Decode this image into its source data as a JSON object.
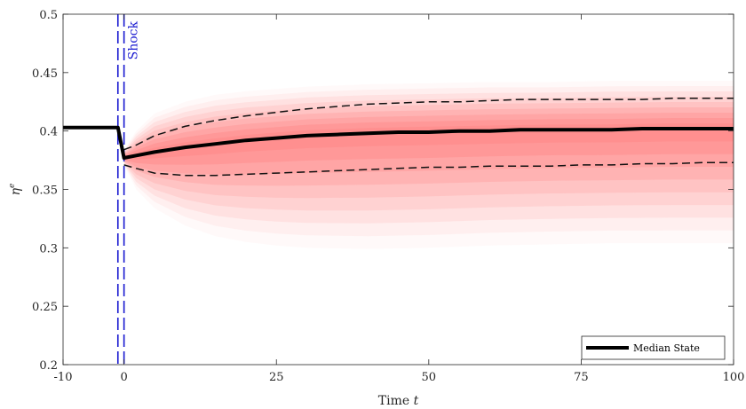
{
  "chart_data": {
    "type": "line",
    "xlabel": "Time t",
    "xlabel_parts": {
      "text": "Time ",
      "var": "t"
    },
    "ylabel": "η^e",
    "ylabel_parts": {
      "base": "η",
      "sup": "e"
    },
    "xlim": [
      -10,
      100
    ],
    "ylim": [
      0.2,
      0.5
    ],
    "xticks": [
      -10,
      0,
      25,
      50,
      75,
      100
    ],
    "xtick_labels": [
      "-10",
      "0",
      "25",
      "50",
      "75",
      "100"
    ],
    "yticks": [
      0.2,
      0.25,
      0.3,
      0.35,
      0.4,
      0.45,
      0.5
    ],
    "ytick_labels": [
      "0.2",
      "0.25",
      "0.3",
      "0.35",
      "0.4",
      "0.45",
      "0.5"
    ],
    "grid": false,
    "legend": {
      "position": "bottom-right",
      "entries": [
        "Median State"
      ]
    },
    "annotation": {
      "text": "Shock",
      "x": 0,
      "color": "#1a1ad0"
    },
    "shock_lines": [
      -1,
      0
    ],
    "median": {
      "name": "Median State",
      "x": [
        -10,
        -1,
        0,
        2,
        5,
        10,
        15,
        20,
        25,
        30,
        35,
        40,
        45,
        50,
        55,
        60,
        65,
        70,
        75,
        80,
        85,
        90,
        95,
        100
      ],
      "y": [
        0.403,
        0.403,
        0.377,
        0.379,
        0.382,
        0.386,
        0.389,
        0.392,
        0.394,
        0.396,
        0.397,
        0.398,
        0.399,
        0.399,
        0.4,
        0.4,
        0.401,
        0.401,
        0.401,
        0.401,
        0.402,
        0.402,
        0.402,
        0.402
      ]
    },
    "dashed_bands": {
      "x": [
        0,
        2,
        5,
        10,
        15,
        20,
        25,
        30,
        35,
        40,
        45,
        50,
        55,
        60,
        65,
        70,
        75,
        80,
        85,
        90,
        95,
        100
      ],
      "upper": [
        0.384,
        0.388,
        0.396,
        0.404,
        0.409,
        0.413,
        0.416,
        0.419,
        0.421,
        0.423,
        0.424,
        0.425,
        0.425,
        0.426,
        0.427,
        0.427,
        0.427,
        0.427,
        0.427,
        0.428,
        0.428,
        0.428
      ],
      "lower": [
        0.371,
        0.368,
        0.364,
        0.362,
        0.362,
        0.363,
        0.364,
        0.365,
        0.366,
        0.367,
        0.368,
        0.369,
        0.369,
        0.37,
        0.37,
        0.37,
        0.371,
        0.371,
        0.372,
        0.372,
        0.373,
        0.373
      ]
    },
    "fan_bands": {
      "x": [
        0,
        2,
        5,
        10,
        15,
        20,
        25,
        30,
        40,
        50,
        60,
        70,
        80,
        90,
        100
      ],
      "upper_outer": [
        0.384,
        0.4,
        0.415,
        0.425,
        0.431,
        0.434,
        0.436,
        0.438,
        0.44,
        0.441,
        0.442,
        0.442,
        0.443,
        0.443,
        0.443
      ],
      "lower_outer": [
        0.371,
        0.35,
        0.334,
        0.319,
        0.31,
        0.305,
        0.302,
        0.3,
        0.299,
        0.3,
        0.302,
        0.303,
        0.304,
        0.304,
        0.304
      ],
      "levels": [
        0.08,
        0.14,
        0.2,
        0.26,
        0.32,
        0.38,
        0.44,
        0.5,
        0.56
      ],
      "color": "#ff7a7a"
    }
  }
}
